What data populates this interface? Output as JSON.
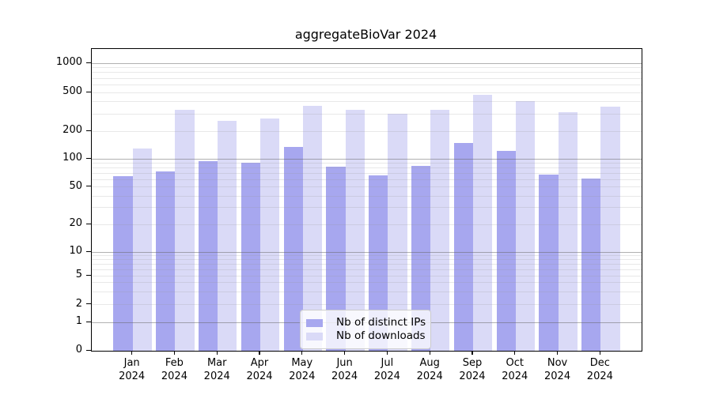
{
  "title": "aggregateBioVar 2024",
  "legend": {
    "items": [
      {
        "label": "Nb of distinct IPs",
        "color": "#a7a7ef"
      },
      {
        "label": "Nb of downloads",
        "color": "#dadaf7"
      }
    ]
  },
  "x_axis": {
    "months": [
      "Jan",
      "Feb",
      "Mar",
      "Apr",
      "May",
      "Jun",
      "Jul",
      "Aug",
      "Sep",
      "Oct",
      "Nov",
      "Dec"
    ],
    "year": "2024"
  },
  "y_axis": {
    "ticks": [
      0,
      1,
      2,
      5,
      10,
      20,
      50,
      100,
      200,
      500,
      1000
    ]
  },
  "chart_data": {
    "type": "bar",
    "title": "aggregateBioVar 2024",
    "categories": [
      "Jan 2024",
      "Feb 2024",
      "Mar 2024",
      "Apr 2024",
      "May 2024",
      "Jun 2024",
      "Jul 2024",
      "Aug 2024",
      "Sep 2024",
      "Oct 2024",
      "Nov 2024",
      "Dec 2024"
    ],
    "series": [
      {
        "name": "Nb of distinct IPs",
        "color": "#a7a7ef",
        "values": [
          65,
          73,
          95,
          91,
          135,
          83,
          66,
          84,
          150,
          122,
          68,
          62
        ]
      },
      {
        "name": "Nb of downloads",
        "color": "#dadaf7",
        "values": [
          130,
          333,
          255,
          270,
          365,
          330,
          300,
          330,
          470,
          405,
          315,
          360
        ]
      }
    ],
    "yscale": "symlog",
    "yticks": [
      0,
      1,
      2,
      5,
      10,
      20,
      50,
      100,
      200,
      500,
      1000
    ],
    "ylim": [
      0,
      1150
    ],
    "grid": "on",
    "gridlines_above_bars": true,
    "legend_position": "lower center"
  }
}
